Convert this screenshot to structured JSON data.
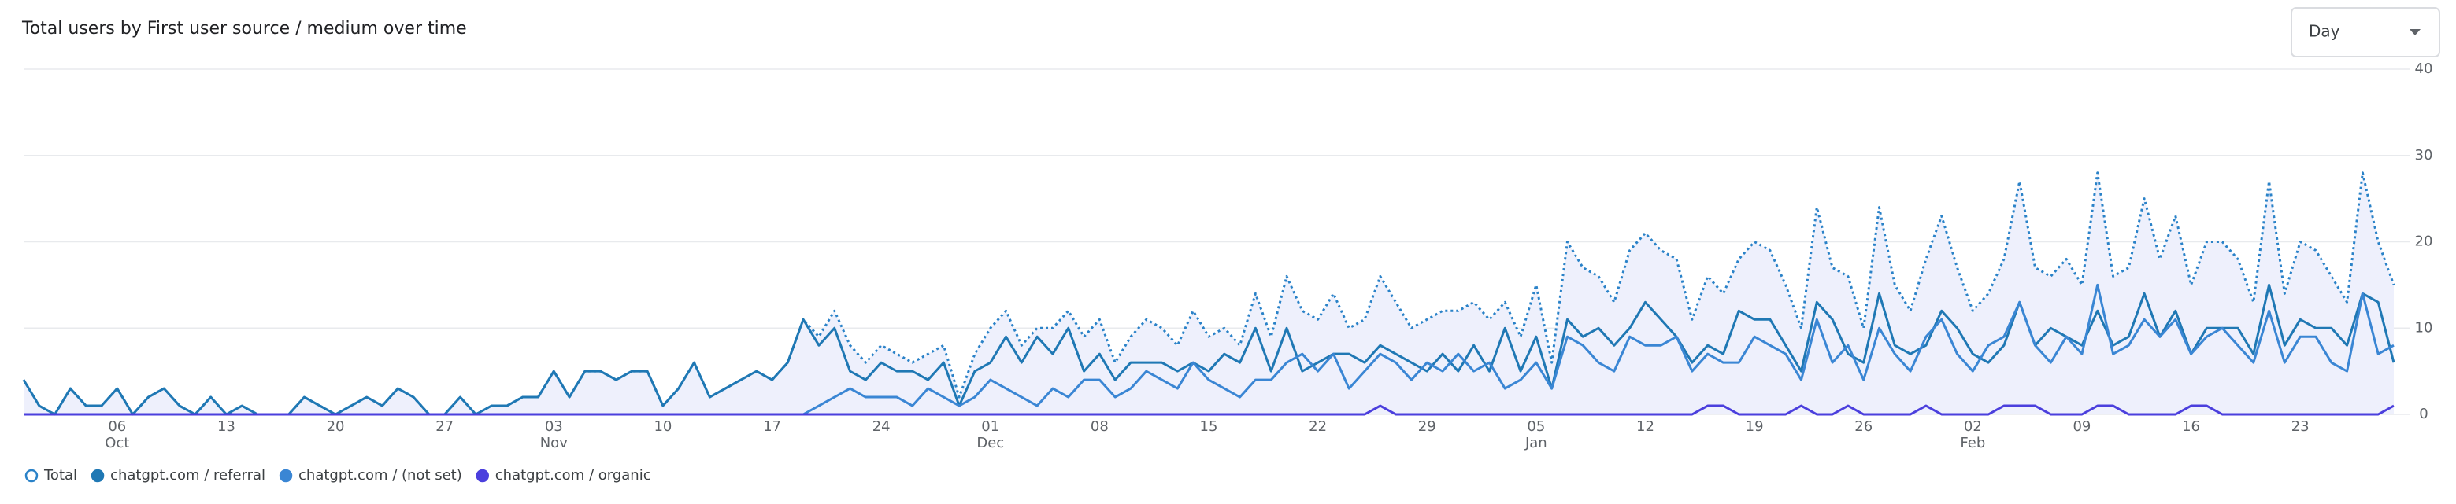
{
  "chart_data": {
    "type": "line",
    "title": "Total users by First user source / medium over time",
    "categories": [
      null,
      null,
      null,
      null,
      null,
      null,
      "06",
      null,
      null,
      null,
      null,
      null,
      null,
      "13",
      null,
      null,
      null,
      null,
      null,
      null,
      "20",
      null,
      null,
      null,
      null,
      null,
      null,
      "27",
      null,
      null,
      null,
      null,
      null,
      null,
      "03",
      null,
      null,
      null,
      null,
      null,
      null,
      "10",
      null,
      null,
      null,
      null,
      null,
      null,
      "17",
      null,
      null,
      null,
      null,
      null,
      null,
      "24",
      null,
      null,
      null,
      null,
      null,
      null,
      "01",
      null,
      null,
      null,
      null,
      null,
      null,
      "08",
      null,
      null,
      null,
      null,
      null,
      null,
      "15",
      null,
      null,
      null,
      null,
      null,
      null,
      "22",
      null,
      null,
      null,
      null,
      null,
      null,
      "29",
      null,
      null,
      null,
      null,
      null,
      null,
      "05",
      null,
      null,
      null,
      null,
      null,
      null,
      "12",
      null,
      null,
      null,
      null,
      null,
      null,
      "19",
      null,
      null,
      null,
      null,
      null,
      null,
      "26",
      null,
      null,
      null,
      null,
      null,
      null,
      "02",
      null,
      null,
      null,
      null,
      null,
      null,
      "09",
      null,
      null,
      null,
      null,
      null,
      null,
      "16",
      null,
      null,
      null,
      null,
      null,
      null,
      "23",
      null,
      null,
      null,
      null,
      null,
      null
    ],
    "category_months": [
      null,
      null,
      null,
      null,
      null,
      null,
      "Oct",
      null,
      null,
      null,
      null,
      null,
      null,
      null,
      null,
      null,
      null,
      null,
      null,
      null,
      null,
      null,
      null,
      null,
      null,
      null,
      null,
      null,
      null,
      null,
      null,
      null,
      null,
      null,
      "Nov",
      null,
      null,
      null,
      null,
      null,
      null,
      null,
      null,
      null,
      null,
      null,
      null,
      null,
      null,
      null,
      null,
      null,
      null,
      null,
      null,
      null,
      null,
      null,
      null,
      null,
      null,
      null,
      "Dec",
      null,
      null,
      null,
      null,
      null,
      null,
      null,
      null,
      null,
      null,
      null,
      null,
      null,
      null,
      null,
      null,
      null,
      null,
      null,
      null,
      null,
      null,
      null,
      null,
      null,
      null,
      null,
      null,
      null,
      null,
      null,
      null,
      null,
      null,
      "Jan",
      null,
      null,
      null,
      null,
      null,
      null,
      null,
      null,
      null,
      null,
      null,
      null,
      null,
      null,
      null,
      null,
      null,
      null,
      null,
      null,
      null,
      null,
      null,
      null,
      null,
      null,
      null,
      "Feb",
      null,
      null,
      null,
      null,
      null,
      null,
      null,
      null,
      null,
      null,
      null,
      null,
      null,
      null,
      null,
      null,
      null,
      null,
      null,
      null,
      null,
      null,
      null,
      null,
      null,
      null,
      null
    ],
    "series": [
      {
        "name": "Total",
        "color": "#2a82c8",
        "style": "dotted",
        "fill": "#eef0fc",
        "marker": "hollow",
        "values": [
          4,
          1,
          0,
          3,
          1,
          1,
          3,
          0,
          2,
          3,
          1,
          0,
          2,
          0,
          1,
          0,
          0,
          0,
          2,
          1,
          0,
          1,
          2,
          1,
          3,
          2,
          0,
          0,
          2,
          0,
          1,
          1,
          2,
          2,
          5,
          2,
          5,
          5,
          4,
          5,
          5,
          1,
          3,
          6,
          2,
          3,
          4,
          5,
          4,
          6,
          11,
          9,
          12,
          8,
          6,
          8,
          7,
          6,
          7,
          8,
          2,
          7,
          10,
          12,
          8,
          10,
          10,
          12,
          9,
          11,
          6,
          9,
          11,
          10,
          8,
          12,
          9,
          10,
          8,
          14,
          9,
          16,
          12,
          11,
          14,
          10,
          11,
          16,
          13,
          10,
          11,
          12,
          12,
          13,
          11,
          13,
          9,
          15,
          6,
          20,
          17,
          16,
          13,
          19,
          21,
          19,
          18,
          11,
          16,
          14,
          18,
          20,
          19,
          15,
          10,
          24,
          17,
          16,
          10,
          24,
          15,
          12,
          18,
          23,
          17,
          12,
          14,
          18,
          27,
          17,
          16,
          18,
          15,
          28,
          16,
          17,
          25,
          18,
          23,
          15,
          20,
          20,
          18,
          13,
          27,
          14,
          20,
          19,
          16,
          13,
          28,
          20,
          15
        ]
      },
      {
        "name": "chatgpt.com / referral",
        "color": "#1f78b4",
        "style": "solid",
        "marker": "filled",
        "values": [
          4,
          1,
          0,
          3,
          1,
          1,
          3,
          0,
          2,
          3,
          1,
          0,
          2,
          0,
          1,
          0,
          0,
          0,
          2,
          1,
          0,
          1,
          2,
          1,
          3,
          2,
          0,
          0,
          2,
          0,
          1,
          1,
          2,
          2,
          5,
          2,
          5,
          5,
          4,
          5,
          5,
          1,
          3,
          6,
          2,
          3,
          4,
          5,
          4,
          6,
          11,
          8,
          10,
          5,
          4,
          6,
          5,
          5,
          4,
          6,
          1,
          5,
          6,
          9,
          6,
          9,
          7,
          10,
          5,
          7,
          4,
          6,
          6,
          6,
          5,
          6,
          5,
          7,
          6,
          10,
          5,
          10,
          5,
          6,
          7,
          7,
          6,
          8,
          7,
          6,
          5,
          7,
          5,
          8,
          5,
          10,
          5,
          9,
          3,
          11,
          9,
          10,
          8,
          10,
          13,
          11,
          9,
          6,
          8,
          7,
          12,
          11,
          11,
          8,
          5,
          13,
          11,
          7,
          6,
          14,
          8,
          7,
          8,
          12,
          10,
          7,
          6,
          8,
          13,
          8,
          10,
          9,
          8,
          12,
          8,
          9,
          14,
          9,
          12,
          7,
          10,
          10,
          10,
          7,
          15,
          8,
          11,
          10,
          10,
          8,
          14,
          13,
          6
        ]
      },
      {
        "name": "chatgpt.com / (not set)",
        "color": "#3a86d4",
        "style": "solid",
        "marker": "filled",
        "values": [
          0,
          0,
          0,
          0,
          0,
          0,
          0,
          0,
          0,
          0,
          0,
          0,
          0,
          0,
          0,
          0,
          0,
          0,
          0,
          0,
          0,
          0,
          0,
          0,
          0,
          0,
          0,
          0,
          0,
          0,
          0,
          0,
          0,
          0,
          0,
          0,
          0,
          0,
          0,
          0,
          0,
          0,
          0,
          0,
          0,
          0,
          0,
          0,
          0,
          0,
          0,
          1,
          2,
          3,
          2,
          2,
          2,
          1,
          3,
          2,
          1,
          2,
          4,
          3,
          2,
          1,
          3,
          2,
          4,
          4,
          2,
          3,
          5,
          4,
          3,
          6,
          4,
          3,
          2,
          4,
          4,
          6,
          7,
          5,
          7,
          3,
          5,
          7,
          6,
          4,
          6,
          5,
          7,
          5,
          6,
          3,
          4,
          6,
          3,
          9,
          8,
          6,
          5,
          9,
          8,
          8,
          9,
          5,
          7,
          6,
          6,
          9,
          8,
          7,
          4,
          11,
          6,
          8,
          4,
          10,
          7,
          5,
          9,
          11,
          7,
          5,
          8,
          9,
          13,
          8,
          6,
          9,
          7,
          15,
          7,
          8,
          11,
          9,
          11,
          7,
          9,
          10,
          8,
          6,
          12,
          6,
          9,
          9,
          6,
          5,
          14,
          7,
          8
        ]
      },
      {
        "name": "chatgpt.com / organic",
        "color": "#4b3fdd",
        "style": "solid",
        "marker": "filled",
        "values": [
          0,
          0,
          0,
          0,
          0,
          0,
          0,
          0,
          0,
          0,
          0,
          0,
          0,
          0,
          0,
          0,
          0,
          0,
          0,
          0,
          0,
          0,
          0,
          0,
          0,
          0,
          0,
          0,
          0,
          0,
          0,
          0,
          0,
          0,
          0,
          0,
          0,
          0,
          0,
          0,
          0,
          0,
          0,
          0,
          0,
          0,
          0,
          0,
          0,
          0,
          0,
          0,
          0,
          0,
          0,
          0,
          0,
          0,
          0,
          0,
          0,
          0,
          0,
          0,
          0,
          0,
          0,
          0,
          0,
          0,
          0,
          0,
          0,
          0,
          0,
          0,
          0,
          0,
          0,
          0,
          0,
          0,
          0,
          0,
          0,
          0,
          0,
          1,
          0,
          0,
          0,
          0,
          0,
          0,
          0,
          0,
          0,
          0,
          0,
          0,
          0,
          0,
          0,
          0,
          0,
          0,
          0,
          0,
          1,
          1,
          0,
          0,
          0,
          0,
          1,
          0,
          0,
          1,
          0,
          0,
          0,
          0,
          1,
          0,
          0,
          0,
          0,
          1,
          1,
          1,
          0,
          0,
          0,
          1,
          1,
          0,
          0,
          0,
          0,
          1,
          1,
          0,
          0,
          0,
          0,
          0,
          0,
          0,
          0,
          0,
          0,
          0,
          1
        ]
      }
    ],
    "ylim": [
      0,
      40
    ],
    "yticks": [
      0,
      10,
      20,
      30,
      40
    ],
    "grid": true,
    "axis_side": "right",
    "legend": "bottom-left"
  },
  "controls": {
    "granularity": "Day"
  }
}
